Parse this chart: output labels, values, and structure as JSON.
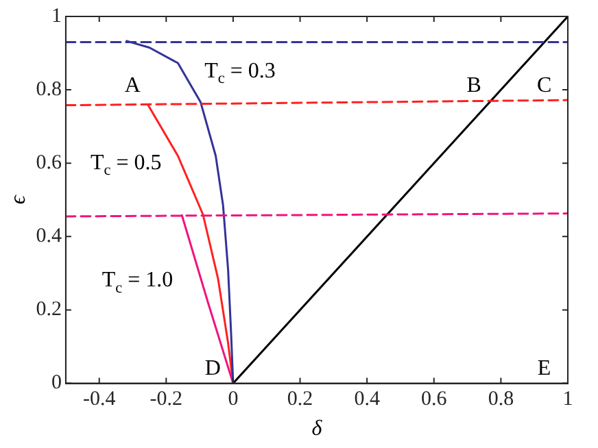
{
  "chart_data": {
    "type": "line",
    "xlabel": "δ",
    "ylabel": "ϵ",
    "xlim": [
      -0.5,
      1
    ],
    "ylim": [
      0,
      1
    ],
    "xticks": [
      -0.4,
      -0.2,
      0,
      0.2,
      0.4,
      0.6,
      0.8,
      1
    ],
    "yticks": [
      0,
      0.2,
      0.4,
      0.6,
      0.8,
      1
    ],
    "grid": false,
    "legend": false,
    "series": [
      {
        "color": "#333399",
        "line_style": "dashed",
        "x": [
          -0.5,
          1
        ],
        "values": [
          0.93,
          0.93
        ]
      },
      {
        "color": "#ff2020",
        "line_style": "dashed",
        "x": [
          -0.5,
          1
        ],
        "values": [
          0.758,
          0.772
        ]
      },
      {
        "color": "#f0147d",
        "line_style": "dashed",
        "x": [
          -0.5,
          1
        ],
        "values": [
          0.455,
          0.463
        ]
      },
      {
        "color": "#333399",
        "line_style": "solid",
        "x": [
          -0.318,
          -0.25,
          -0.165,
          -0.097,
          -0.052,
          -0.03,
          -0.015,
          -0.006,
          0
        ],
        "values": [
          0.933,
          0.915,
          0.873,
          0.766,
          0.62,
          0.485,
          0.31,
          0.135,
          0
        ]
      },
      {
        "color": "#ff2020",
        "line_style": "solid",
        "x": [
          -0.255,
          -0.165,
          -0.09,
          -0.045,
          -0.015,
          0
        ],
        "values": [
          0.76,
          0.62,
          0.46,
          0.285,
          0.11,
          0
        ]
      },
      {
        "color": "#f0147d",
        "line_style": "solid",
        "x": [
          -0.153,
          -0.075,
          0
        ],
        "values": [
          0.458,
          0.22,
          0
        ]
      },
      {
        "color": "#000000",
        "line_style": "solid",
        "x": [
          0,
          1
        ],
        "values": [
          0,
          1
        ]
      }
    ],
    "annotations": [
      "A",
      "B",
      "C",
      "D",
      "E",
      "T$_{c}$ = 0.3",
      "T$_{c}$ = 0.5",
      "T$_{c}$ = 1.0"
    ]
  }
}
